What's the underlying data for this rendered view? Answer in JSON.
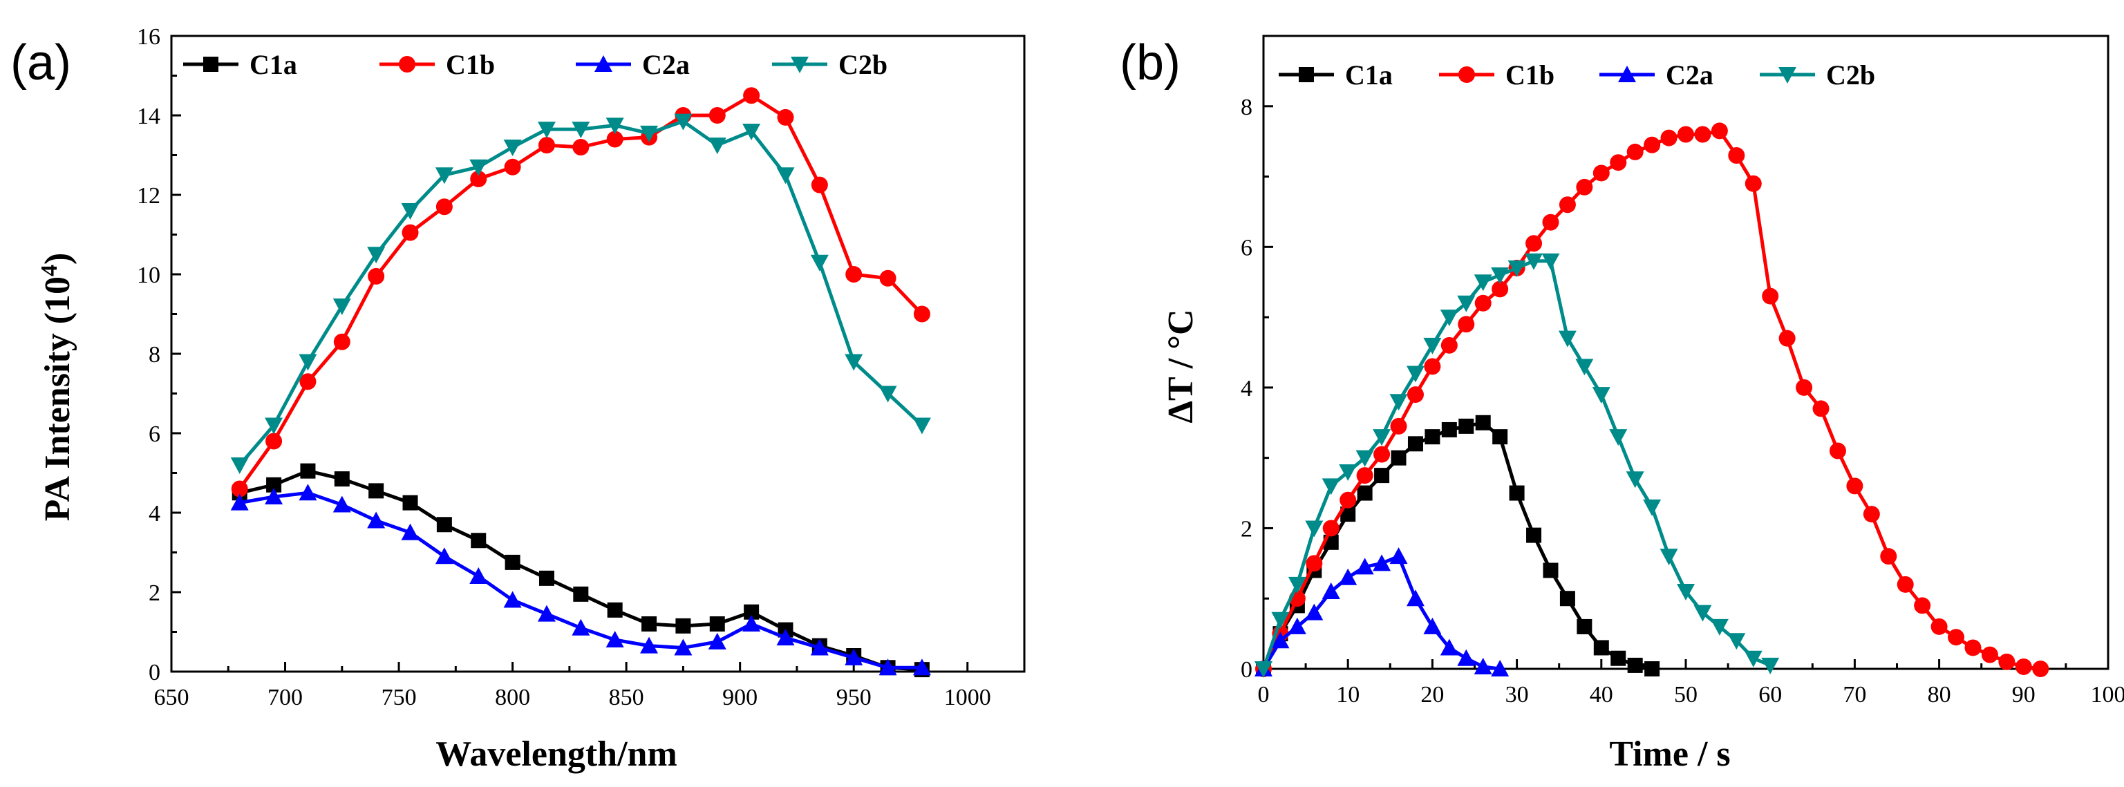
{
  "chart_data": [
    {
      "type": "line",
      "panel_label": "(a)",
      "title": "",
      "xlabel": "Wavelength/nm",
      "ylabel": "PA Intensity (10",
      "ylabel_superscript": "4",
      "ylabel_close": ")",
      "xlim": [
        650,
        1025
      ],
      "ylim": [
        0,
        16
      ],
      "xticks": [
        "650",
        "700",
        "750",
        "800",
        "850",
        "900",
        "950",
        "1000"
      ],
      "yticks": [
        "0",
        "2",
        "4",
        "6",
        "8",
        "10",
        "12",
        "14",
        "16"
      ],
      "legend_position": "top",
      "grid": false,
      "x": [
        680,
        695,
        710,
        725,
        740,
        755,
        770,
        785,
        800,
        815,
        830,
        845,
        860,
        875,
        890,
        905,
        920,
        935,
        950,
        965,
        980
      ],
      "series": [
        {
          "name": "C1a",
          "color": "#000000",
          "marker": "square",
          "values": [
            4.5,
            4.7,
            5.05,
            4.85,
            4.55,
            4.25,
            3.7,
            3.3,
            2.75,
            2.35,
            1.95,
            1.55,
            1.2,
            1.15,
            1.2,
            1.5,
            1.05,
            0.65,
            0.4,
            0.1,
            0.05
          ]
        },
        {
          "name": "C1b",
          "color": "#ff0000",
          "marker": "circle",
          "values": [
            4.6,
            5.8,
            7.3,
            8.3,
            9.95,
            11.05,
            11.7,
            12.4,
            12.7,
            13.25,
            13.2,
            13.4,
            13.45,
            14.0,
            14.0,
            14.5,
            13.95,
            12.25,
            10.0,
            9.9,
            9.0
          ]
        },
        {
          "name": "C2a",
          "color": "#0000ff",
          "marker": "triangle-up",
          "values": [
            4.25,
            4.4,
            4.5,
            4.2,
            3.8,
            3.5,
            2.9,
            2.4,
            1.8,
            1.45,
            1.1,
            0.8,
            0.65,
            0.6,
            0.75,
            1.2,
            0.85,
            0.6,
            0.35,
            0.1,
            0.1
          ]
        },
        {
          "name": "C2b",
          "color": "#008b8b",
          "marker": "triangle-down",
          "values": [
            5.2,
            6.2,
            7.8,
            9.2,
            10.5,
            11.6,
            12.5,
            12.7,
            13.2,
            13.65,
            13.65,
            13.75,
            13.55,
            13.85,
            13.25,
            13.6,
            12.5,
            10.3,
            7.8,
            7.0,
            6.2
          ]
        }
      ]
    },
    {
      "type": "line",
      "panel_label": "(b)",
      "title": "",
      "xlabel": "Time / s",
      "ylabel": "ΔT / °C",
      "xlim": [
        0,
        100
      ],
      "ylim": [
        0,
        9
      ],
      "xticks": [
        "0",
        "10",
        "20",
        "30",
        "40",
        "50",
        "60",
        "70",
        "80",
        "90",
        "100"
      ],
      "yticks": [
        "0",
        "2",
        "4",
        "6",
        "8"
      ],
      "legend_position": "top",
      "grid": false,
      "series": [
        {
          "name": "C1a",
          "color": "#000000",
          "marker": "square",
          "x": [
            0,
            2,
            4,
            6,
            8,
            10,
            12,
            14,
            16,
            18,
            20,
            22,
            24,
            26,
            28,
            30,
            32,
            34,
            36,
            38,
            40,
            42,
            44,
            46
          ],
          "values": [
            0,
            0.5,
            0.9,
            1.4,
            1.8,
            2.2,
            2.5,
            2.75,
            3.0,
            3.2,
            3.3,
            3.4,
            3.45,
            3.5,
            3.3,
            2.5,
            1.9,
            1.4,
            1.0,
            0.6,
            0.3,
            0.15,
            0.05,
            0
          ]
        },
        {
          "name": "C1b",
          "color": "#ff0000",
          "marker": "circle",
          "x": [
            0,
            2,
            4,
            6,
            8,
            10,
            12,
            14,
            16,
            18,
            20,
            22,
            24,
            26,
            28,
            30,
            32,
            34,
            36,
            38,
            40,
            42,
            44,
            46,
            48,
            50,
            52,
            54,
            56,
            58,
            60,
            62,
            64,
            66,
            68,
            70,
            72,
            74,
            76,
            78,
            80,
            82,
            84,
            86,
            88,
            90,
            92
          ],
          "values": [
            0,
            0.5,
            1.0,
            1.5,
            2.0,
            2.4,
            2.75,
            3.05,
            3.45,
            3.9,
            4.3,
            4.6,
            4.9,
            5.2,
            5.4,
            5.7,
            6.05,
            6.35,
            6.6,
            6.85,
            7.05,
            7.2,
            7.35,
            7.45,
            7.55,
            7.6,
            7.6,
            7.65,
            7.3,
            6.9,
            5.3,
            4.7,
            4.0,
            3.7,
            3.1,
            2.6,
            2.2,
            1.6,
            1.2,
            0.9,
            0.6,
            0.45,
            0.3,
            0.2,
            0.1,
            0.03,
            0
          ]
        },
        {
          "name": "C2a",
          "color": "#0000ff",
          "marker": "triangle-up",
          "x": [
            0,
            2,
            4,
            6,
            8,
            10,
            12,
            14,
            16,
            18,
            20,
            22,
            24,
            26,
            28
          ],
          "values": [
            0,
            0.4,
            0.6,
            0.8,
            1.1,
            1.3,
            1.45,
            1.5,
            1.6,
            1.0,
            0.6,
            0.3,
            0.15,
            0.03,
            0
          ]
        },
        {
          "name": "C2b",
          "color": "#008b8b",
          "marker": "triangle-down",
          "x": [
            0,
            2,
            4,
            6,
            8,
            10,
            12,
            14,
            16,
            18,
            20,
            22,
            24,
            26,
            28,
            30,
            32,
            34,
            36,
            38,
            40,
            42,
            44,
            46,
            48,
            50,
            52,
            54,
            56,
            58,
            60
          ],
          "values": [
            0,
            0.7,
            1.2,
            2.0,
            2.6,
            2.8,
            3.0,
            3.3,
            3.8,
            4.2,
            4.6,
            5.0,
            5.2,
            5.5,
            5.6,
            5.7,
            5.8,
            5.8,
            4.7,
            4.3,
            3.9,
            3.3,
            2.7,
            2.3,
            1.6,
            1.1,
            0.8,
            0.6,
            0.4,
            0.15,
            0.05
          ]
        }
      ]
    }
  ]
}
